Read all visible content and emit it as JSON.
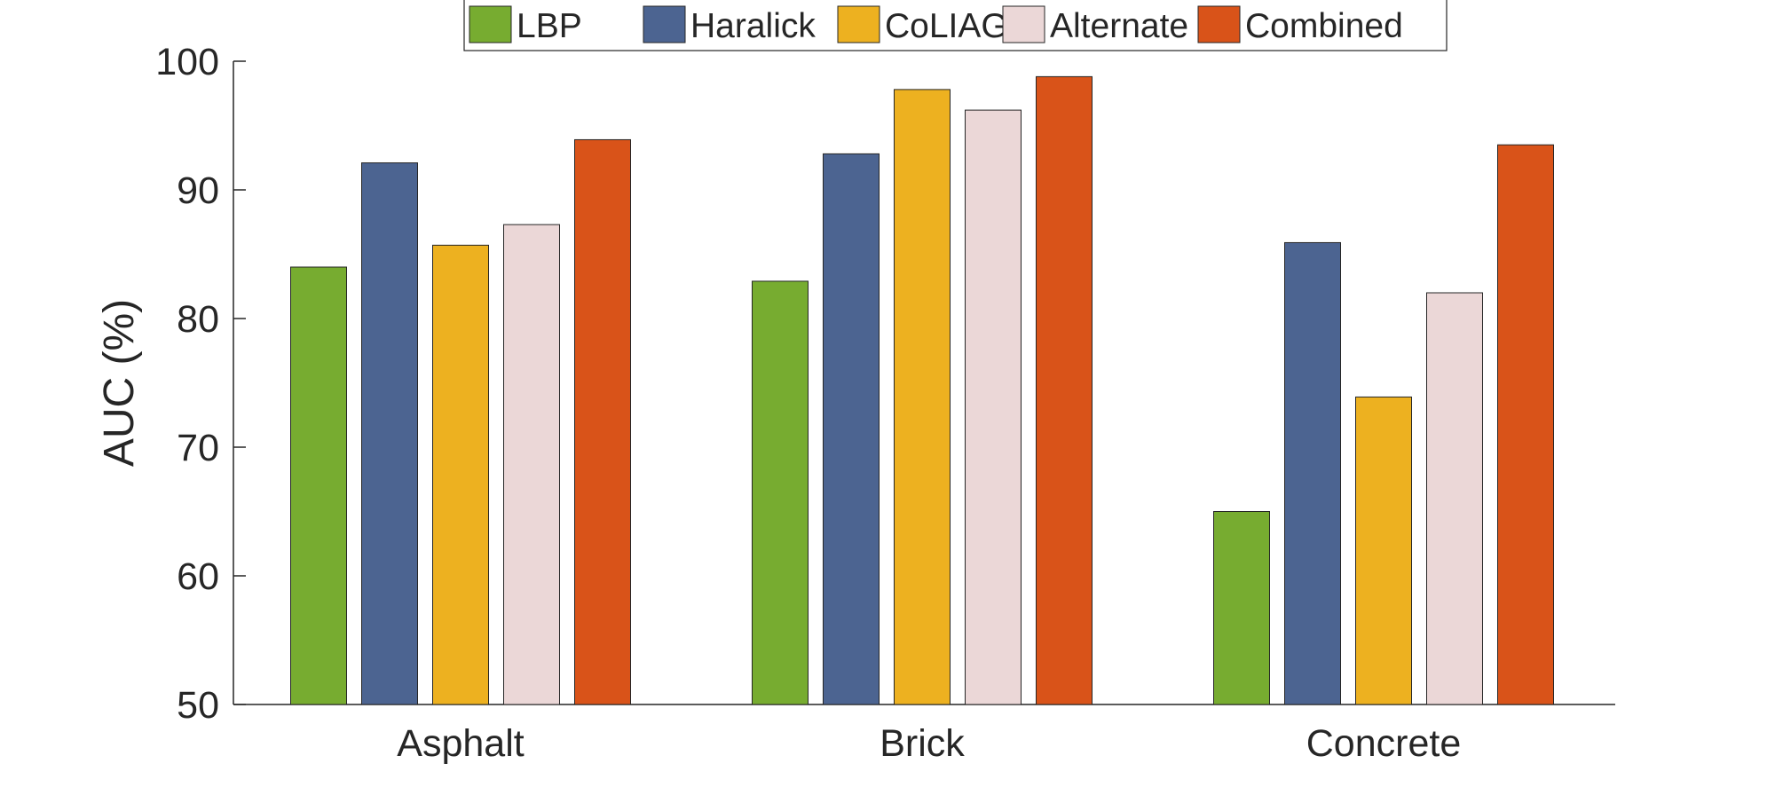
{
  "chart_data": {
    "type": "bar",
    "title": "",
    "xlabel": "",
    "ylabel": "AUC (%)",
    "ylim": [
      50,
      100
    ],
    "yticks": [
      "50",
      "60",
      "70",
      "80",
      "90",
      "100"
    ],
    "grid": false,
    "legend_position": "top",
    "categories": [
      "Asphalt",
      "Brick",
      "Concrete"
    ],
    "series": [
      {
        "name": "LBP",
        "color": "#77ac30",
        "values": [
          84.0,
          82.9,
          65.0
        ]
      },
      {
        "name": "Haralick",
        "color": "#4c6491",
        "values": [
          92.1,
          92.8,
          85.9
        ]
      },
      {
        "name": "CoLIAGe",
        "color": "#edb120",
        "values": [
          85.7,
          97.8,
          73.9
        ]
      },
      {
        "name": "Alternate",
        "color": "#ebd7d7",
        "values": [
          87.3,
          96.2,
          82.0
        ]
      },
      {
        "name": "Combined",
        "color": "#d95319",
        "values": [
          93.9,
          98.8,
          93.5
        ]
      }
    ]
  }
}
